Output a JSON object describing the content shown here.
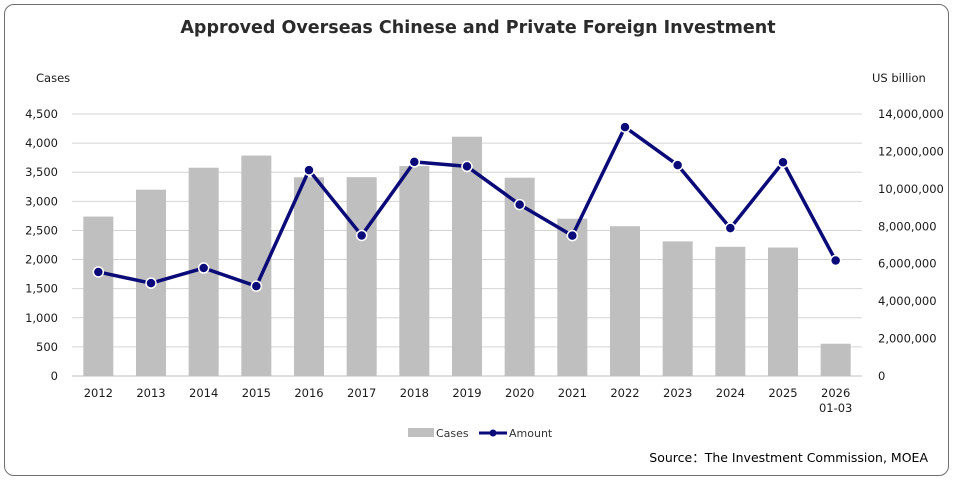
{
  "chart_data": {
    "type": "bar+line",
    "title": "Approved Overseas Chinese and Private Foreign Investment",
    "ylabel_left": "Cases",
    "ylabel_right": "US billion",
    "categories": [
      "2012",
      "2013",
      "2014",
      "2015",
      "2016",
      "2017",
      "2018",
      "2019",
      "2020",
      "2021",
      "2022",
      "2023",
      "2024",
      "2025",
      "2026\n01-03"
    ],
    "series": [
      {
        "name": "Cases",
        "type": "bar",
        "axis": "left",
        "color": "#bfbfbf",
        "values": [
          2738,
          3200,
          3577,
          3786,
          3413,
          3415,
          3606,
          4110,
          3406,
          2702,
          2573,
          2312,
          2219,
          2206,
          554
        ]
      },
      {
        "name": "Amount",
        "type": "line",
        "axis": "right",
        "color": "#0a0a78",
        "values": [
          5560000,
          4960000,
          5770000,
          4800000,
          11000000,
          7510000,
          11440000,
          11200000,
          9160000,
          7500000,
          13300000,
          11270000,
          7900000,
          11420000,
          6170000
        ]
      }
    ],
    "ylim_left": [
      0,
      4500
    ],
    "yticks_left": [
      0,
      500,
      1000,
      1500,
      2000,
      2500,
      3000,
      3500,
      4000,
      4500
    ],
    "ytick_labels_left": [
      "0",
      "500",
      "1,000",
      "1,500",
      "2,000",
      "2,500",
      "3,000",
      "3,500",
      "4,000",
      "4,500"
    ],
    "ylim_right": [
      0,
      14000000
    ],
    "yticks_right": [
      0,
      2000000,
      4000000,
      6000000,
      8000000,
      10000000,
      12000000,
      14000000
    ],
    "ytick_labels_right": [
      "0",
      "2,000,000",
      "4,000,000",
      "6,000,000",
      "8,000,000",
      "10,000,000",
      "12,000,000",
      "14,000,000"
    ],
    "grid": true,
    "legend_position": "bottom-center",
    "source": "Source：The Investment Commission, MOEA"
  }
}
